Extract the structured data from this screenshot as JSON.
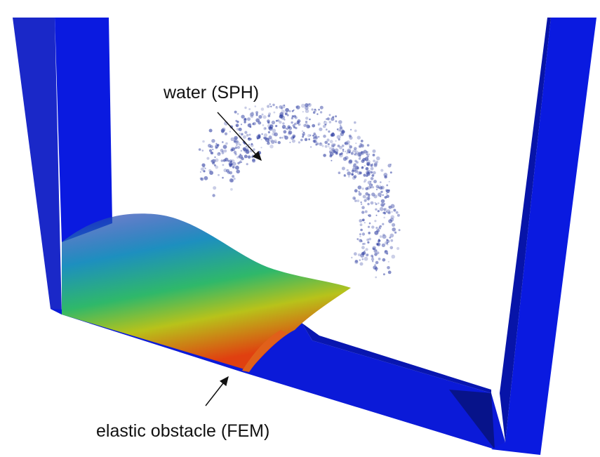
{
  "labels": {
    "water": "water (SPH)",
    "obstacle": "elastic obstacle (FEM)"
  }
}
